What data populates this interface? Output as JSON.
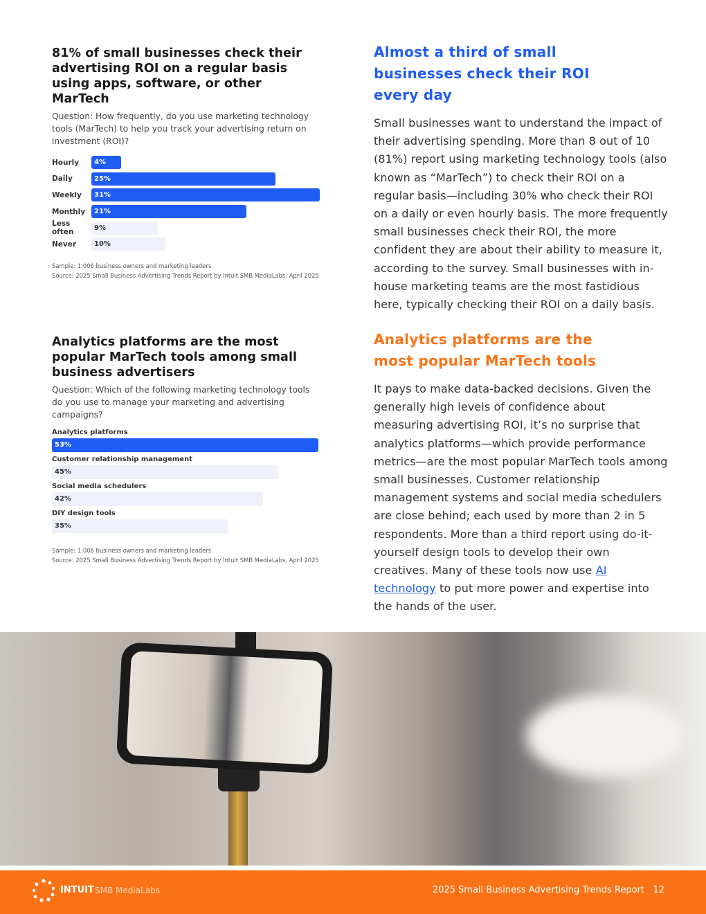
{
  "chart1": {
    "title": "81% of small businesses check their advertising ROI on a regular basis using apps, software, or other MarTech",
    "question": "Question: How frequently, do you use marketing technology tools (MarTech) to help you track your advertising return on investment (ROI)?",
    "sample": "Sample: 1,006 business owners and marketing leaders",
    "source": "Source: 2025 Small Business Advertising Trends Report by Intuit SMB MediaLabs, April 2025"
  },
  "chart2": {
    "title": "Analytics platforms are the most popular MarTech tools among small business advertisers",
    "question": "Question: Which of the following marketing technology tools do you use to manage your marketing and advertising campaigns?",
    "sample": "Sample: 1,006 business owners and marketing leaders",
    "source": "Source: 2025 Small Business Advertising Trends Report by Intuit SMB MediaLabs, April 2025"
  },
  "chart_data": [
    {
      "type": "bar",
      "orientation": "horizontal",
      "categories": [
        "Hourly",
        "Daily",
        "Weekly",
        "Monthly",
        "Less often",
        "Never"
      ],
      "values": [
        4,
        25,
        31,
        21,
        9,
        10
      ],
      "labels": [
        "4%",
        "25%",
        "31%",
        "21%",
        "9%",
        "10%"
      ],
      "highlighted": [
        true,
        true,
        true,
        true,
        false,
        false
      ],
      "colors": {
        "highlight": "#1f5cf5",
        "muted": "#eef0fb"
      }
    },
    {
      "type": "bar",
      "orientation": "horizontal",
      "categories": [
        "Analytics platforms",
        "Customer relationship management",
        "Social media schedulers",
        "DIY design tools"
      ],
      "values": [
        53,
        45,
        42,
        35
      ],
      "labels": [
        "53%",
        "45%",
        "42%",
        "35%"
      ],
      "highlighted": [
        true,
        false,
        false,
        false
      ],
      "colors": {
        "highlight": "#1f5cf5",
        "muted": "#eef0fb"
      }
    }
  ],
  "section1": {
    "heading": "Almost a third of small businesses check their ROI every day",
    "color": "#1f5cf5",
    "body": "Small businesses want to understand the impact of their advertising spending. More than 8 out of 10 (81%) report using marketing technology tools (also known as “MarTech”) to check their ROI on a regular basis—including 30% who check their ROI on a daily or even hourly basis. The more frequently small businesses check their ROI, the more confident they are about their ability to measure it, according to the survey. Small businesses with in-house marketing teams are the most fastidious here, typically checking their ROI on a daily basis."
  },
  "section2": {
    "heading": "Analytics platforms are the most popular MarTech tools",
    "color": "#f97316",
    "body_before": "It pays to make data-backed decisions. Given the generally high levels of confidence about measuring advertising ROI, it’s no surprise that analytics platforms—which provide performance metrics—are the most popular MarTech tools among small businesses. Customer relationship management systems and social media schedulers are close behind; each used by more than 2 in 5 respondents. More than a third report using do-it-yourself design tools to develop their own creatives. Many of these tools now use ",
    "link": "AI technology",
    "body_after": " to put more power and expertise into the hands of the user."
  },
  "footer": {
    "brand": "INTUIT",
    "brand_sub": "SMB MediaLabs",
    "report": "2025 Small Business Advertising Trends Report",
    "page": "12",
    "color": "#f97316"
  }
}
